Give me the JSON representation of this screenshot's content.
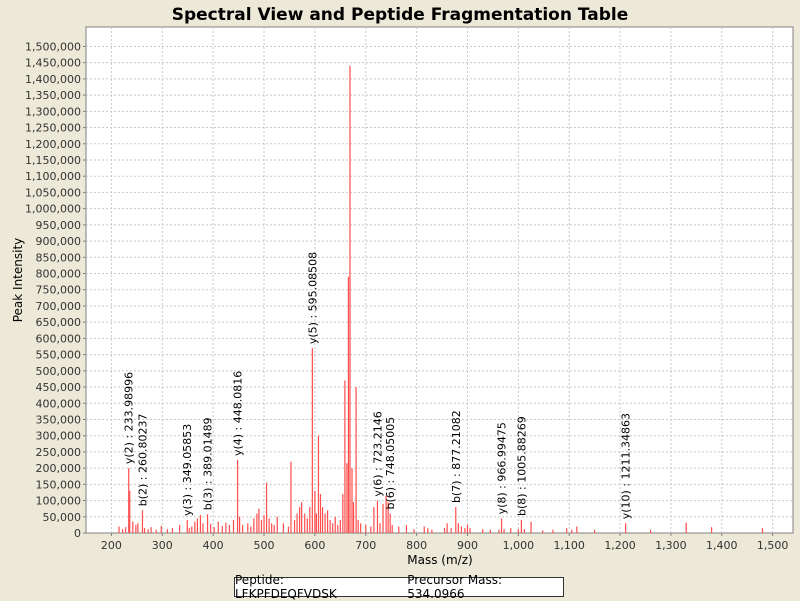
{
  "chart_data": {
    "type": "bar",
    "title": "Spectral View and Peptide Fragmentation Table",
    "xlabel": "Mass (m/z)",
    "ylabel": "Peak Intensity",
    "xlim": [
      150,
      1540
    ],
    "ylim": [
      0,
      1560000
    ],
    "x_ticks": [
      200,
      300,
      400,
      500,
      600,
      700,
      800,
      900,
      1000,
      1100,
      1200,
      1300,
      1400,
      1500
    ],
    "x_tick_labels": [
      "200",
      "300",
      "400",
      "500",
      "600",
      "700",
      "800",
      "900",
      "1,000",
      "1,100",
      "1,200",
      "1,300",
      "1,400",
      "1,500"
    ],
    "y_ticks": [
      0,
      50000,
      100000,
      150000,
      200000,
      250000,
      300000,
      350000,
      400000,
      450000,
      500000,
      550000,
      600000,
      650000,
      700000,
      750000,
      800000,
      850000,
      900000,
      950000,
      1000000,
      1050000,
      1100000,
      1150000,
      1200000,
      1250000,
      1300000,
      1350000,
      1400000,
      1450000,
      1500000
    ],
    "y_tick_labels": [
      "0",
      "50,000",
      "100,000",
      "150,000",
      "200,000",
      "250,000",
      "300,000",
      "350,000",
      "400,000",
      "450,000",
      "500,000",
      "550,000",
      "600,000",
      "650,000",
      "700,000",
      "750,000",
      "800,000",
      "850,000",
      "900,000",
      "950,000",
      "1,000,000",
      "1,050,000",
      "1,100,000",
      "1,150,000",
      "1,200,000",
      "1,250,000",
      "1,300,000",
      "1,350,000",
      "1,400,000",
      "1,450,000",
      "1,500,000"
    ],
    "peak_color": "#ff4c4c",
    "peaks": [
      [
        215,
        20000
      ],
      [
        222,
        12000
      ],
      [
        228,
        18000
      ],
      [
        234,
        200000
      ],
      [
        236,
        130000
      ],
      [
        242,
        35000
      ],
      [
        248,
        25000
      ],
      [
        252,
        30000
      ],
      [
        261,
        70000
      ],
      [
        265,
        15000
      ],
      [
        272,
        12000
      ],
      [
        278,
        18000
      ],
      [
        288,
        10000
      ],
      [
        298,
        22000
      ],
      [
        310,
        12000
      ],
      [
        320,
        15000
      ],
      [
        334,
        25000
      ],
      [
        349,
        40000
      ],
      [
        353,
        15000
      ],
      [
        358,
        20000
      ],
      [
        364,
        35000
      ],
      [
        369,
        45000
      ],
      [
        375,
        55000
      ],
      [
        380,
        30000
      ],
      [
        389,
        58000
      ],
      [
        395,
        28000
      ],
      [
        402,
        18000
      ],
      [
        410,
        35000
      ],
      [
        418,
        22000
      ],
      [
        425,
        32000
      ],
      [
        432,
        25000
      ],
      [
        440,
        40000
      ],
      [
        448,
        225000
      ],
      [
        452,
        50000
      ],
      [
        458,
        25000
      ],
      [
        468,
        30000
      ],
      [
        474,
        20000
      ],
      [
        480,
        45000
      ],
      [
        486,
        60000
      ],
      [
        490,
        75000
      ],
      [
        495,
        40000
      ],
      [
        500,
        55000
      ],
      [
        505,
        155000
      ],
      [
        510,
        45000
      ],
      [
        515,
        30000
      ],
      [
        520,
        25000
      ],
      [
        526,
        50000
      ],
      [
        538,
        30000
      ],
      [
        548,
        20000
      ],
      [
        553,
        220000
      ],
      [
        560,
        40000
      ],
      [
        565,
        60000
      ],
      [
        570,
        80000
      ],
      [
        574,
        95000
      ],
      [
        580,
        60000
      ],
      [
        585,
        45000
      ],
      [
        590,
        80000
      ],
      [
        595,
        570000
      ],
      [
        600,
        130000
      ],
      [
        603,
        60000
      ],
      [
        607,
        300000
      ],
      [
        611,
        120000
      ],
      [
        615,
        80000
      ],
      [
        620,
        60000
      ],
      [
        625,
        70000
      ],
      [
        630,
        40000
      ],
      [
        635,
        30000
      ],
      [
        640,
        50000
      ],
      [
        645,
        25000
      ],
      [
        650,
        40000
      ],
      [
        655,
        120000
      ],
      [
        659,
        470000
      ],
      [
        663,
        215000
      ],
      [
        666,
        790000
      ],
      [
        669,
        1440000
      ],
      [
        673,
        200000
      ],
      [
        676,
        95000
      ],
      [
        681,
        450000
      ],
      [
        685,
        40000
      ],
      [
        690,
        30000
      ],
      [
        700,
        25000
      ],
      [
        710,
        20000
      ],
      [
        716,
        80000
      ],
      [
        723,
        100000
      ],
      [
        728,
        30000
      ],
      [
        734,
        90000
      ],
      [
        740,
        115000
      ],
      [
        744,
        95000
      ],
      [
        748,
        60000
      ],
      [
        752,
        25000
      ],
      [
        765,
        20000
      ],
      [
        780,
        25000
      ],
      [
        795,
        12000
      ],
      [
        815,
        20000
      ],
      [
        822,
        15000
      ],
      [
        830,
        10000
      ],
      [
        855,
        15000
      ],
      [
        860,
        30000
      ],
      [
        868,
        15000
      ],
      [
        877,
        80000
      ],
      [
        882,
        30000
      ],
      [
        888,
        20000
      ],
      [
        895,
        15000
      ],
      [
        900,
        25000
      ],
      [
        905,
        15000
      ],
      [
        930,
        12000
      ],
      [
        945,
        10000
      ],
      [
        962,
        10000
      ],
      [
        967,
        45000
      ],
      [
        972,
        12000
      ],
      [
        985,
        15000
      ],
      [
        1000,
        12000
      ],
      [
        1006,
        40000
      ],
      [
        1012,
        12000
      ],
      [
        1025,
        35000
      ],
      [
        1048,
        8000
      ],
      [
        1068,
        10000
      ],
      [
        1095,
        15000
      ],
      [
        1105,
        10000
      ],
      [
        1115,
        20000
      ],
      [
        1150,
        10000
      ],
      [
        1211,
        30000
      ],
      [
        1260,
        10000
      ],
      [
        1330,
        32000
      ],
      [
        1380,
        18000
      ],
      [
        1480,
        15000
      ]
    ],
    "annotations": [
      {
        "x": 234,
        "y": 200000,
        "label": "y(2) : 233.98996"
      },
      {
        "x": 261,
        "y": 70000,
        "label": "b(2) : 260.80237"
      },
      {
        "x": 349,
        "y": 40000,
        "label": "y(3) : 349.05853"
      },
      {
        "x": 389,
        "y": 58000,
        "label": "b(3) : 389.01489"
      },
      {
        "x": 448,
        "y": 225000,
        "label": "y(4) : 448.0816"
      },
      {
        "x": 595,
        "y": 570000,
        "label": "y(5) : 595.08508"
      },
      {
        "x": 723,
        "y": 100000,
        "label": "y(6) : 723.2146"
      },
      {
        "x": 748,
        "y": 60000,
        "label": "b(6) : 748.05005"
      },
      {
        "x": 877,
        "y": 80000,
        "label": "b(7) : 877.21082"
      },
      {
        "x": 967,
        "y": 45000,
        "label": "y(8) : 966.99475"
      },
      {
        "x": 1006,
        "y": 40000,
        "label": "b(8) : 1005.88269"
      },
      {
        "x": 1211,
        "y": 30000,
        "label": "y(10) : 1211.34863"
      }
    ]
  },
  "footer": {
    "peptide": "Peptide: LFKPFDEQFVDSK",
    "precursor": "Precursor Mass: 534.0966"
  }
}
